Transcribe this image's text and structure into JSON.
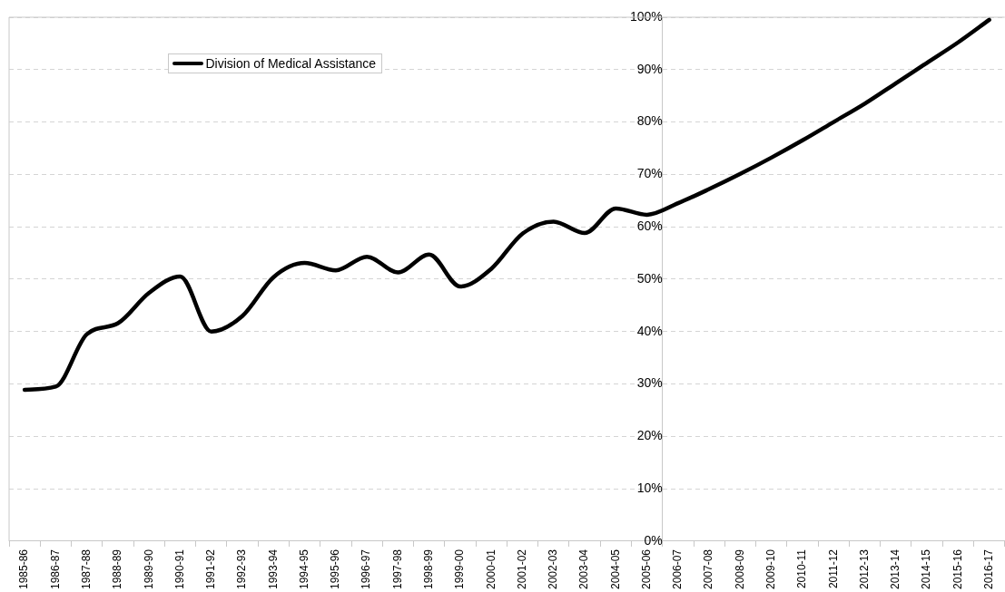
{
  "chart_data": {
    "type": "line",
    "categories": [
      "1985-86",
      "1986-87",
      "1987-88",
      "1988-89",
      "1989-90",
      "1990-91",
      "1991-92",
      "1992-93",
      "1993-94",
      "1994-95",
      "1995-96",
      "1996-97",
      "1997-98",
      "1998-99",
      "1999-00",
      "2000-01",
      "2001-02",
      "2002-03",
      "2003-04",
      "2004-05",
      "2005-06",
      "2006-07",
      "2007-08",
      "2008-09",
      "2009-10",
      "2010-11",
      "2011-12",
      "2012-13",
      "2013-14",
      "2014-15",
      "2015-16",
      "2016-17"
    ],
    "series": [
      {
        "name": "Division of Medical Assistance",
        "color": "#000000",
        "values": [
          28.9,
          29.5,
          39.5,
          41.6,
          47.4,
          50.5,
          40,
          43,
          50.4,
          53.1,
          51.7,
          54.3,
          51.3,
          54.7,
          48.6,
          52,
          58.7,
          61,
          58.8,
          63.5,
          62.3,
          64.5,
          67.2,
          70.1,
          73.2,
          76.5,
          80,
          83.5,
          87.4,
          91.3,
          95.2,
          99.5
        ]
      }
    ],
    "ylim": [
      0,
      100
    ],
    "yticks": [
      {
        "value": 0,
        "label": "0%"
      },
      {
        "value": 10,
        "label": "10%"
      },
      {
        "value": 20,
        "label": "20%"
      },
      {
        "value": 30,
        "label": "30%"
      },
      {
        "value": 40,
        "label": "40%"
      },
      {
        "value": 50,
        "label": "50%"
      },
      {
        "value": 60,
        "label": "60%"
      },
      {
        "value": 70,
        "label": "70%"
      },
      {
        "value": 80,
        "label": "80%"
      },
      {
        "value": 90,
        "label": "90%"
      },
      {
        "value": 100,
        "label": "100%"
      }
    ],
    "grid": "y",
    "legend": "top left",
    "marker": "none",
    "line_style": "solid"
  }
}
